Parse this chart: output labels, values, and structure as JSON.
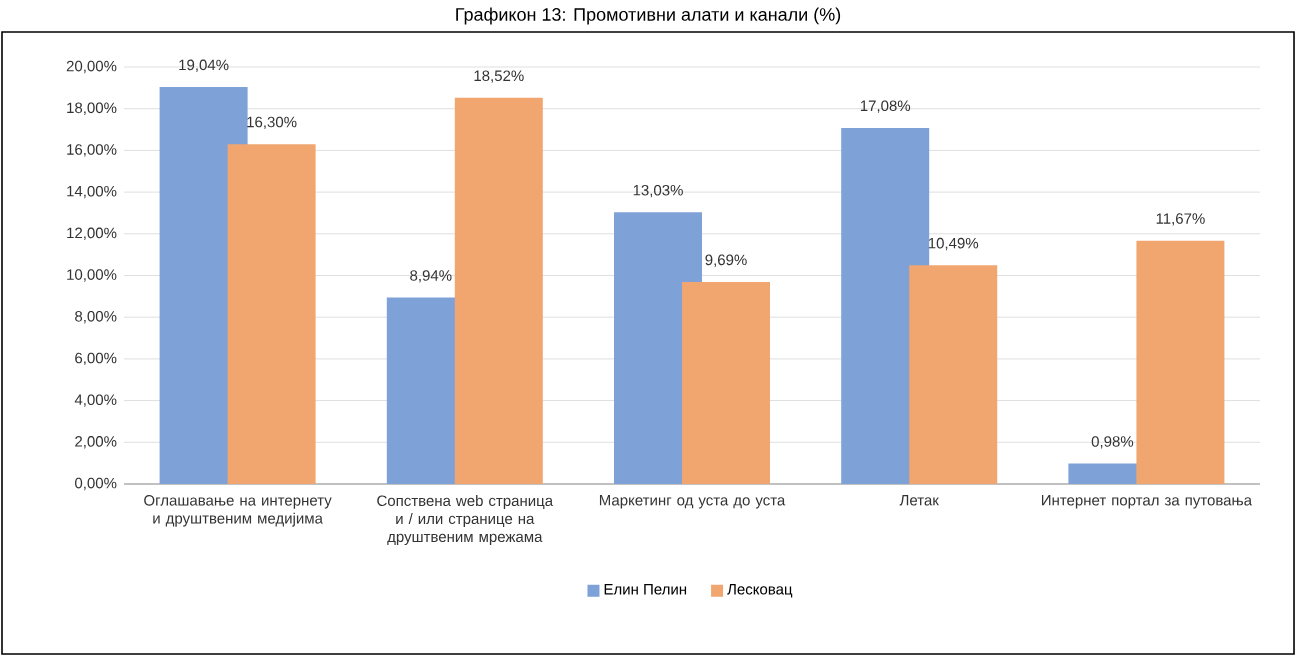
{
  "chart_data": {
    "type": "bar",
    "title": "Графикон 13: Промотивни алати и канали (%)",
    "categories": [
      "Оглашавање на интернету и друштвеним медијима",
      "Сопствена web страница и / или странице на друштвеним мрежама",
      "Маркетинг од уста до уста",
      "Летак",
      "Интернет портал за путовања"
    ],
    "series": [
      {
        "name": "Елин Пелин",
        "color": "#7ea1d7",
        "values": [
          19.04,
          8.94,
          13.03,
          17.08,
          0.98
        ],
        "value_labels": [
          "19,04%",
          "8,94%",
          "13,03%",
          "17,08%",
          "0,98%"
        ]
      },
      {
        "name": "Лесковац",
        "color": "#f1a670",
        "values": [
          16.3,
          18.52,
          9.69,
          10.49,
          11.67
        ],
        "value_labels": [
          "16,30%",
          "18,52%",
          "9,69%",
          "10,49%",
          "11,67%"
        ]
      }
    ],
    "ylim": [
      0,
      20
    ],
    "yticks": [
      {
        "value": 0,
        "label": "0,00%"
      },
      {
        "value": 2,
        "label": "2,00%"
      },
      {
        "value": 4,
        "label": "4,00%"
      },
      {
        "value": 6,
        "label": "6,00%"
      },
      {
        "value": 8,
        "label": "8,00%"
      },
      {
        "value": 10,
        "label": "10,00%"
      },
      {
        "value": 12,
        "label": "12,00%"
      },
      {
        "value": 14,
        "label": "14,00%"
      },
      {
        "value": 16,
        "label": "16,00%"
      },
      {
        "value": 18,
        "label": "18,00%"
      },
      {
        "value": 20,
        "label": "20,00%"
      }
    ],
    "grid": "y",
    "legend": "bottom"
  }
}
